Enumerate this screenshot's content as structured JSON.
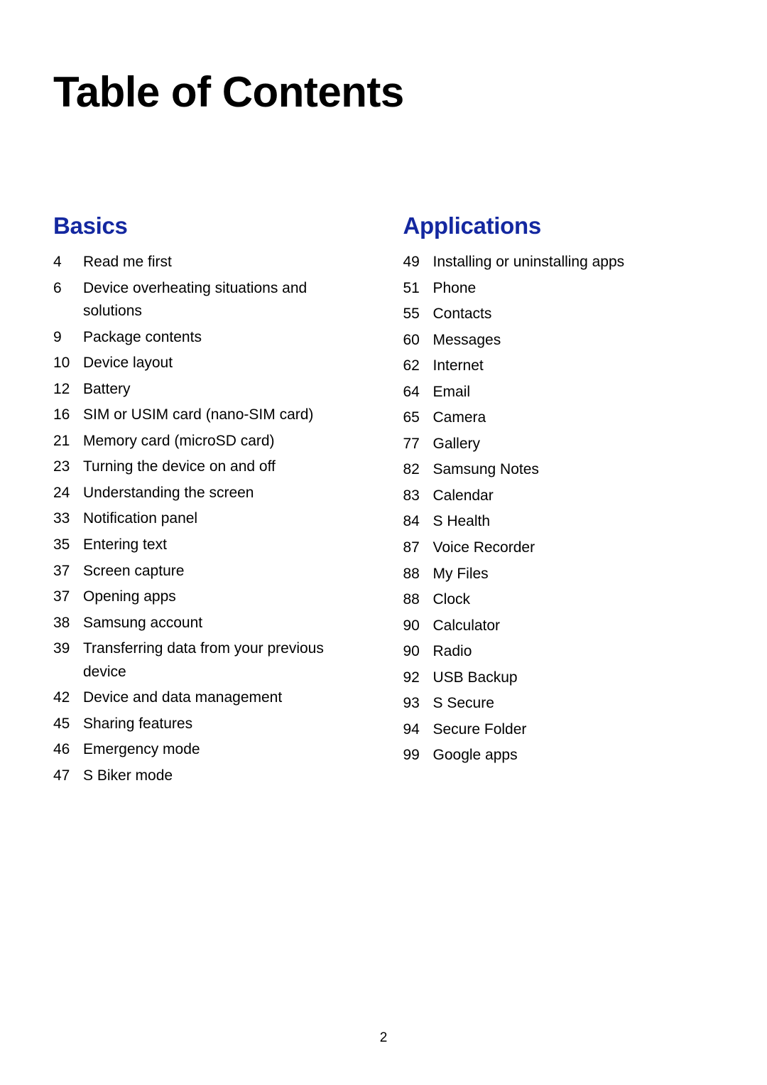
{
  "title": "Table of Contents",
  "pageNumber": "2",
  "colors": {
    "heading": "#1428a0",
    "text": "#000000",
    "background": "#ffffff"
  },
  "typography": {
    "title_fontsize": 60,
    "section_fontsize": 33,
    "entry_fontsize": 21,
    "page_number_fontsize": 19
  },
  "sections": {
    "basics": {
      "title": "Basics",
      "items": [
        {
          "page": "4",
          "label": "Read me first"
        },
        {
          "page": "6",
          "label": "Device overheating situations and solutions"
        },
        {
          "page": "9",
          "label": "Package contents"
        },
        {
          "page": "10",
          "label": "Device layout"
        },
        {
          "page": "12",
          "label": "Battery"
        },
        {
          "page": "16",
          "label": "SIM or USIM card (nano-SIM card)"
        },
        {
          "page": "21",
          "label": "Memory card (microSD card)"
        },
        {
          "page": "23",
          "label": "Turning the device on and off"
        },
        {
          "page": "24",
          "label": "Understanding the screen"
        },
        {
          "page": "33",
          "label": "Notification panel"
        },
        {
          "page": "35",
          "label": "Entering text"
        },
        {
          "page": "37",
          "label": "Screen capture"
        },
        {
          "page": "37",
          "label": "Opening apps"
        },
        {
          "page": "38",
          "label": "Samsung account"
        },
        {
          "page": "39",
          "label": "Transferring data from your previous device"
        },
        {
          "page": "42",
          "label": "Device and data management"
        },
        {
          "page": "45",
          "label": "Sharing features"
        },
        {
          "page": "46",
          "label": "Emergency mode"
        },
        {
          "page": "47",
          "label": "S Biker mode"
        }
      ]
    },
    "applications": {
      "title": "Applications",
      "items": [
        {
          "page": "49",
          "label": "Installing or uninstalling apps"
        },
        {
          "page": "51",
          "label": "Phone"
        },
        {
          "page": "55",
          "label": "Contacts"
        },
        {
          "page": "60",
          "label": "Messages"
        },
        {
          "page": "62",
          "label": "Internet"
        },
        {
          "page": "64",
          "label": "Email"
        },
        {
          "page": "65",
          "label": "Camera"
        },
        {
          "page": "77",
          "label": "Gallery"
        },
        {
          "page": "82",
          "label": "Samsung Notes"
        },
        {
          "page": "83",
          "label": "Calendar"
        },
        {
          "page": "84",
          "label": "S Health"
        },
        {
          "page": "87",
          "label": "Voice Recorder"
        },
        {
          "page": "88",
          "label": "My Files"
        },
        {
          "page": "88",
          "label": "Clock"
        },
        {
          "page": "90",
          "label": "Calculator"
        },
        {
          "page": "90",
          "label": "Radio"
        },
        {
          "page": "92",
          "label": "USB Backup"
        },
        {
          "page": "93",
          "label": "S Secure"
        },
        {
          "page": "94",
          "label": "Secure Folder"
        },
        {
          "page": "99",
          "label": "Google apps"
        }
      ]
    }
  }
}
